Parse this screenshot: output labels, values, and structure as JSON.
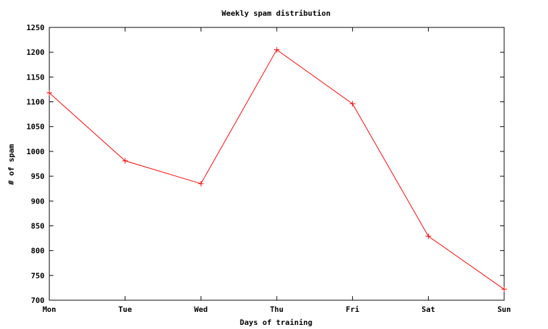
{
  "chart_data": {
    "type": "line",
    "title": "Weekly spam distribution",
    "xlabel": "Days of training",
    "ylabel": "# of spam",
    "categories": [
      "Mon",
      "Tue",
      "Wed",
      "Thu",
      "Fri",
      "Sat",
      "Sun"
    ],
    "series": [
      {
        "values": [
          1118,
          981,
          935,
          1205,
          1096,
          829,
          722
        ],
        "color": "#ff0000"
      }
    ],
    "ylim": [
      700,
      1250
    ],
    "yticks": [
      700,
      750,
      800,
      850,
      900,
      950,
      1000,
      1050,
      1100,
      1150,
      1200,
      1250
    ],
    "grid": false,
    "legend": "none"
  }
}
